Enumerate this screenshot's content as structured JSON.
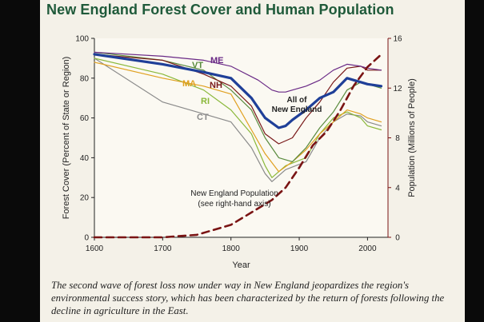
{
  "page": {
    "title": "New England Forest Cover and Human Population",
    "caption": "The second wave of forest loss now under way in New England jeopardizes the region's environmental success story, which has been characterized by the return of forests following the decline in agriculture in the East."
  },
  "chart_data": {
    "type": "line",
    "title": "New England Forest Cover and Human Population",
    "xlabel": "Year",
    "ylabel": "Forest Cover (Percent of State or Region)",
    "y2label": "Population (Millions of People)",
    "xlim": [
      1600,
      2030
    ],
    "ylim": [
      0,
      100
    ],
    "y2lim": [
      0,
      16
    ],
    "xticks": [
      1600,
      1700,
      1800,
      1900,
      2000
    ],
    "yticks": [
      0,
      20,
      40,
      60,
      80,
      100
    ],
    "y2ticks": [
      0,
      4,
      8,
      12,
      16
    ],
    "grid": false,
    "colors": {
      "ME": "#6a2a86",
      "VT": "#5a8b3e",
      "NH": "#7a1a1a",
      "MA": "#e0a020",
      "RI": "#8ab83a",
      "CT": "#8a8a8a",
      "all": "#1f3f98",
      "population": "#7a1414"
    },
    "series": [
      {
        "name": "ME",
        "axis": "left",
        "x": [
          1600,
          1700,
          1760,
          1800,
          1840,
          1860,
          1870,
          1880,
          1890,
          1910,
          1930,
          1950,
          1970,
          1990,
          2000,
          2020
        ],
        "y": [
          93,
          91,
          89,
          86,
          79,
          74,
          73,
          73,
          74,
          76,
          79,
          84,
          87,
          86,
          85,
          84
        ]
      },
      {
        "name": "VT",
        "axis": "left",
        "x": [
          1600,
          1700,
          1760,
          1800,
          1830,
          1850,
          1870,
          1890,
          1910,
          1930,
          1950,
          1970,
          1990,
          2000,
          2020
        ],
        "y": [
          93,
          89,
          84,
          74,
          64,
          50,
          40,
          38,
          45,
          55,
          63,
          74,
          78,
          77,
          75
        ]
      },
      {
        "name": "NH",
        "axis": "left",
        "x": [
          1600,
          1700,
          1760,
          1800,
          1830,
          1850,
          1870,
          1890,
          1910,
          1930,
          1950,
          1970,
          1990,
          2000,
          2020
        ],
        "y": [
          92,
          89,
          82,
          76,
          66,
          52,
          47,
          50,
          60,
          68,
          78,
          85,
          86,
          84,
          84
        ]
      },
      {
        "name": "MA",
        "axis": "left",
        "x": [
          1600,
          1700,
          1760,
          1800,
          1830,
          1850,
          1870,
          1890,
          1910,
          1930,
          1950,
          1970,
          1990,
          2000,
          2020
        ],
        "y": [
          88,
          80,
          76,
          72,
          54,
          42,
          33,
          38,
          44,
          52,
          58,
          64,
          62,
          60,
          58
        ]
      },
      {
        "name": "RI",
        "axis": "left",
        "x": [
          1600,
          1700,
          1760,
          1800,
          1830,
          1850,
          1860,
          1880,
          1910,
          1930,
          1950,
          1970,
          1990,
          2000,
          2020
        ],
        "y": [
          90,
          82,
          74,
          64,
          52,
          36,
          30,
          36,
          40,
          52,
          60,
          63,
          60,
          56,
          54
        ]
      },
      {
        "name": "CT",
        "axis": "left",
        "x": [
          1600,
          1700,
          1760,
          1800,
          1830,
          1850,
          1860,
          1880,
          1910,
          1930,
          1950,
          1970,
          1990,
          2000,
          2020
        ],
        "y": [
          90,
          68,
          62,
          58,
          45,
          32,
          28,
          34,
          38,
          50,
          58,
          62,
          61,
          58,
          56
        ]
      },
      {
        "name": "All of New England",
        "axis": "left",
        "x": [
          1600,
          1700,
          1760,
          1800,
          1830,
          1850,
          1870,
          1880,
          1890,
          1910,
          1930,
          1950,
          1970,
          1990,
          2000,
          2020
        ],
        "y": [
          92,
          87,
          83,
          80,
          70,
          60,
          55,
          56,
          59,
          64,
          70,
          73,
          80,
          78,
          77,
          76
        ]
      },
      {
        "name": "New England Population",
        "axis": "right",
        "x": [
          1600,
          1700,
          1750,
          1800,
          1830,
          1860,
          1880,
          1900,
          1920,
          1940,
          1960,
          1980,
          2000,
          2020
        ],
        "y": [
          0,
          0,
          0.2,
          1.0,
          2.0,
          3.0,
          4.0,
          5.6,
          7.4,
          8.5,
          10.2,
          12.2,
          13.7,
          14.7
        ]
      }
    ],
    "labels": {
      "ME": "ME",
      "VT": "VT",
      "MA": "MA",
      "NH": "NH",
      "RI": "RI",
      "CT": "CT",
      "all_1": "All of",
      "all_2": "New England",
      "pop_1": "New England Population",
      "pop_2": "(see right-hand axis)"
    }
  }
}
